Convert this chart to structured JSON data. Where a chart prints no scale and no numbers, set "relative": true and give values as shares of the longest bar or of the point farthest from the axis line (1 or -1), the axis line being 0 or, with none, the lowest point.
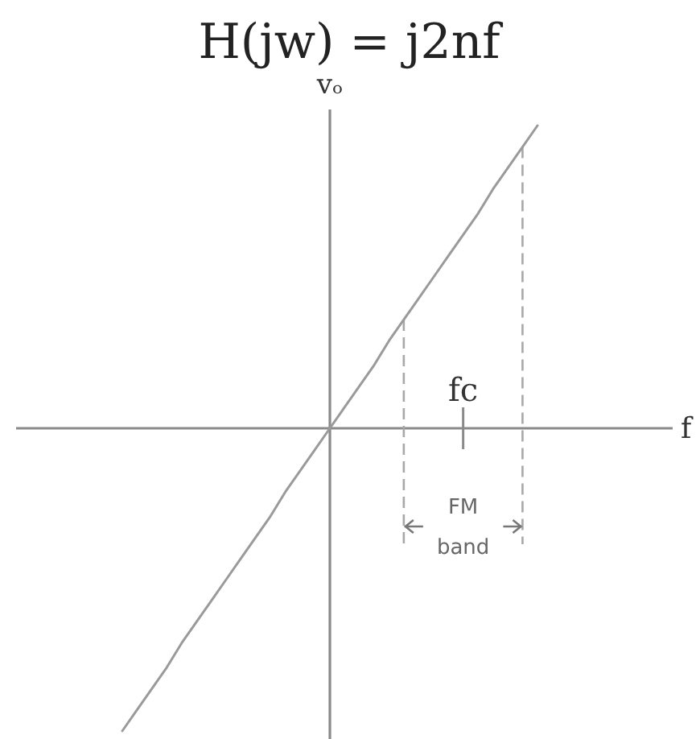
{
  "chart_data": {
    "type": "line",
    "title": "H(jw) = j2nf",
    "xlabel": "f",
    "ylabel": "vₒ",
    "relative": true,
    "categories": [
      null,
      null,
      null,
      null,
      null,
      null,
      null,
      null,
      null,
      null,
      null,
      null,
      null,
      null,
      null,
      null,
      null,
      null,
      null,
      null,
      null,
      null,
      null,
      null,
      null,
      null,
      null,
      null,
      null
    ],
    "series": [
      {
        "color": "#9a9a9a",
        "values": [
          -1,
          -0.93,
          -0.86,
          -0.79,
          -0.71,
          -0.64,
          -0.57,
          -0.5,
          -0.43,
          -0.36,
          -0.29,
          -0.21,
          -0.14,
          -0.07,
          0,
          0.07,
          0.14,
          0.21,
          0.29,
          0.36,
          0.43,
          0.5,
          0.57,
          0.64,
          0.71,
          0.79,
          0.86,
          0.93,
          1
        ]
      }
    ],
    "annotations": [
      "fc",
      "FM band"
    ]
  }
}
